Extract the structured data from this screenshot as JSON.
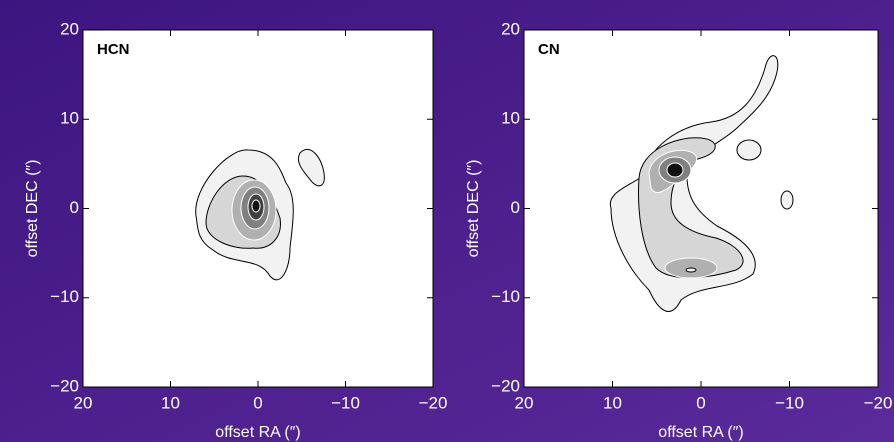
{
  "chart_data": [
    {
      "type": "contour",
      "title": "HCN",
      "xlabel": "offset RA (″)",
      "ylabel": "offset DEC (″)",
      "xlim": [
        20,
        -20
      ],
      "ylim": [
        -20,
        20
      ],
      "xticks": [
        20,
        10,
        0,
        {
          "value": -10,
          "label": "−10"
        },
        {
          "value": -20,
          "label": "−20"
        }
      ],
      "yticks": [
        20,
        10,
        0,
        {
          "value": -10,
          "label": "−10"
        },
        {
          "value": -20,
          "label": "−20"
        }
      ]
    },
    {
      "type": "contour",
      "title": "CN",
      "xlabel": "offset RA (″)",
      "ylabel": "offset DEC (″)",
      "xlim": [
        20,
        -20
      ],
      "ylim": [
        -20,
        20
      ],
      "xticks": [
        20,
        10,
        0,
        {
          "value": -10,
          "label": "−10"
        },
        {
          "value": -20,
          "label": "−20"
        }
      ],
      "yticks": [
        20,
        10,
        0,
        {
          "value": -10,
          "label": "−10"
        },
        {
          "value": -20,
          "label": "−20"
        }
      ]
    }
  ]
}
